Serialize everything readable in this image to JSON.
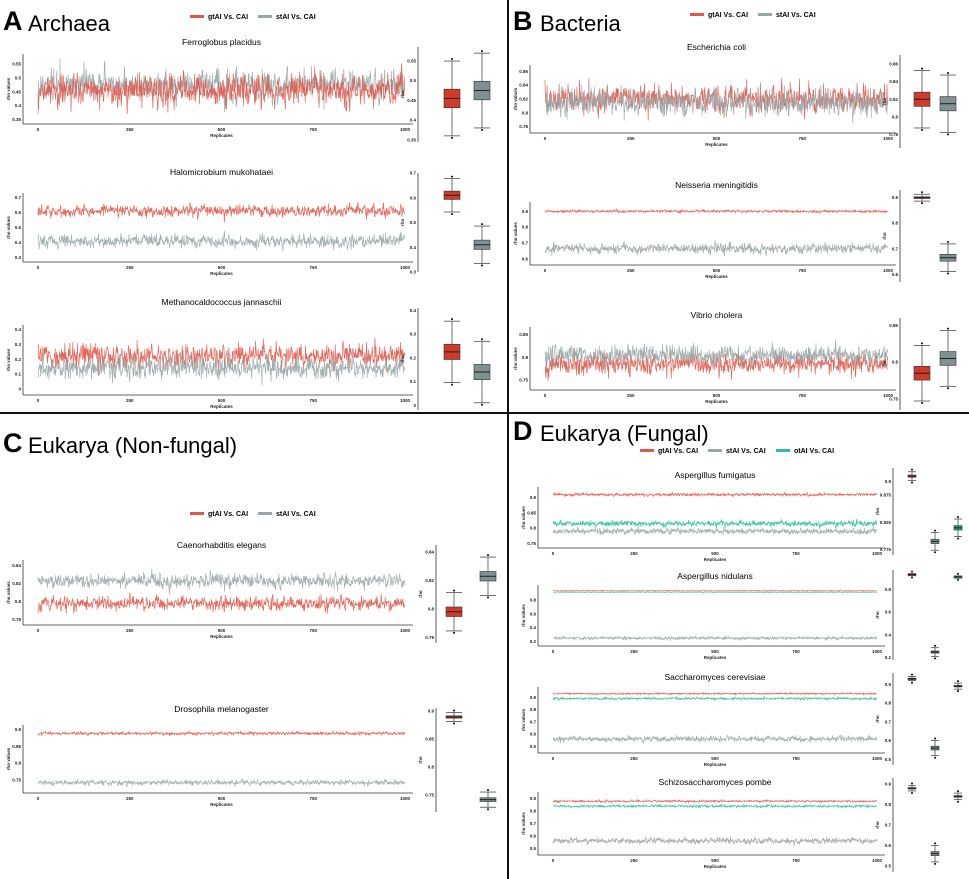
{
  "colors": {
    "gtAI": "#e0584a",
    "stAI": "#9aa6a7",
    "otAI": "#2fbf9f",
    "box_gtAI": "#cf3a2a",
    "box_stAI": "#7f9192",
    "box_otAI": "#1aa586"
  },
  "chart_data": [
    {
      "panel": "A",
      "header": "Archaea",
      "legend": [
        "gtAI Vs. CAI",
        "stAI Vs. CAI"
      ],
      "plots": [
        {
          "title": "Ferroglobus placidus",
          "type": "line",
          "xlabel": "Replicates",
          "ylabel": "rho values",
          "xlim": [
            0,
            1000
          ],
          "xticks": [
            0,
            250,
            500,
            750,
            1000
          ],
          "ylim": [
            0.345,
            0.575
          ],
          "yticks": [
            0.35,
            0.4,
            0.45,
            0.5,
            0.55
          ],
          "box_ylabel": "rho",
          "box_ylim": [
            0.345,
            0.585
          ],
          "box_yticks": [
            0.35,
            0.4,
            0.45,
            0.5,
            0.55
          ],
          "series": [
            {
              "name": "gtAI Vs. CAI",
              "key": "gtAI",
              "mean": 0.455,
              "sd": 0.035
            },
            {
              "name": "stAI Vs. CAI",
              "key": "stAI",
              "mean": 0.475,
              "sd": 0.035
            }
          ]
        },
        {
          "title": "Halomicrobium mukohataei",
          "type": "line",
          "xlabel": "Replicates",
          "ylabel": "rho values",
          "xlim": [
            0,
            1000
          ],
          "xticks": [
            0,
            250,
            500,
            750,
            1000
          ],
          "ylim": [
            0.29,
            0.71
          ],
          "yticks": [
            0.3,
            0.4,
            0.5,
            0.6,
            0.7
          ],
          "box_ylabel": "rho",
          "box_ylim": [
            0.3,
            0.7
          ],
          "box_yticks": [
            0.3,
            0.4,
            0.5,
            0.6,
            0.7
          ],
          "series": [
            {
              "name": "gtAI Vs. CAI",
              "key": "gtAI",
              "mean": 0.61,
              "sd": 0.025
            },
            {
              "name": "stAI Vs. CAI",
              "key": "stAI",
              "mean": 0.41,
              "sd": 0.028
            }
          ]
        },
        {
          "title": "Methanocaldococcus jannaschii",
          "type": "line",
          "xlabel": "Replicates",
          "ylabel": "rho values",
          "xlim": [
            0,
            1000
          ],
          "xticks": [
            0,
            250,
            500,
            750,
            1000
          ],
          "ylim": [
            -0.02,
            0.41
          ],
          "yticks": [
            0.0,
            0.1,
            0.2,
            0.3,
            0.4
          ],
          "box_ylabel": "rho",
          "box_ylim": [
            -0.02,
            0.41
          ],
          "box_yticks": [
            0.0,
            0.1,
            0.2,
            0.3,
            0.4
          ],
          "series": [
            {
              "name": "gtAI Vs. CAI",
              "key": "gtAI",
              "mean": 0.225,
              "sd": 0.048
            },
            {
              "name": "stAI Vs. CAI",
              "key": "stAI",
              "mean": 0.14,
              "sd": 0.048
            }
          ]
        }
      ]
    },
    {
      "panel": "B",
      "header": "Bacteria",
      "legend": [
        "gtAI Vs. CAI",
        "stAI Vs. CAI"
      ],
      "plots": [
        {
          "title": "Escherichia coli",
          "type": "line",
          "xlabel": "Replicates",
          "ylabel": "rho values",
          "xlim": [
            0,
            1000
          ],
          "xticks": [
            0,
            250,
            500,
            750,
            1000
          ],
          "ylim": [
            0.775,
            0.865
          ],
          "yticks": [
            0.78,
            0.8,
            0.82,
            0.84,
            0.86
          ],
          "box_ylabel": "rho",
          "box_ylim": [
            0.765,
            0.87
          ],
          "box_yticks": [
            0.78,
            0.8,
            0.82,
            0.84,
            0.86
          ],
          "series": [
            {
              "name": "gtAI Vs. CAI",
              "key": "gtAI",
              "mean": 0.82,
              "sd": 0.012
            },
            {
              "name": "stAI Vs. CAI",
              "key": "stAI",
              "mean": 0.815,
              "sd": 0.012
            }
          ]
        },
        {
          "title": "Neisseria meningitidis",
          "type": "line",
          "xlabel": "Replicates",
          "ylabel": "rho values",
          "xlim": [
            0,
            1000
          ],
          "xticks": [
            0,
            250,
            500,
            750,
            1000
          ],
          "ylim": [
            0.58,
            0.94
          ],
          "yticks": [
            0.6,
            0.7,
            0.8,
            0.9
          ],
          "box_ylabel": "rho",
          "box_ylim": [
            0.57,
            0.93
          ],
          "box_yticks": [
            0.6,
            0.7,
            0.8,
            0.9
          ],
          "series": [
            {
              "name": "gtAI Vs. CAI",
              "key": "gtAI",
              "mean": 0.9,
              "sd": 0.005
            },
            {
              "name": "stAI Vs. CAI",
              "key": "stAI",
              "mean": 0.665,
              "sd": 0.02
            }
          ]
        },
        {
          "title": "Vibrio cholera",
          "type": "line",
          "xlabel": "Replicates",
          "ylabel": "rho values",
          "xlim": [
            0,
            1000
          ],
          "xticks": [
            0,
            250,
            500,
            750,
            1000
          ],
          "ylim": [
            0.735,
            0.86
          ],
          "yticks": [
            0.75,
            0.8,
            0.85
          ],
          "box_ylabel": "rho",
          "box_ylim": [
            0.735,
            0.86
          ],
          "box_yticks": [
            0.75,
            0.8,
            0.85
          ],
          "series": [
            {
              "name": "gtAI Vs. CAI",
              "key": "gtAI",
              "mean": 0.785,
              "sd": 0.014
            },
            {
              "name": "stAI Vs. CAI",
              "key": "stAI",
              "mean": 0.805,
              "sd": 0.014
            }
          ]
        }
      ]
    },
    {
      "panel": "C",
      "header": "Eukarya (Non-fungal)",
      "legend": [
        "gtAI Vs. CAI",
        "stAI Vs. CAI"
      ],
      "plots": [
        {
          "title": "Caenorhabditis elegans",
          "type": "line",
          "xlabel": "Replicates",
          "ylabel": "rho values",
          "xlim": [
            0,
            1000
          ],
          "xticks": [
            0,
            250,
            500,
            750,
            1000
          ],
          "ylim": [
            0.777,
            0.843
          ],
          "yticks": [
            0.78,
            0.8,
            0.82,
            0.84
          ],
          "box_ylabel": "rho",
          "box_ylim": [
            0.776,
            0.845
          ],
          "box_yticks": [
            0.78,
            0.8,
            0.82,
            0.84
          ],
          "series": [
            {
              "name": "gtAI Vs. CAI",
              "key": "gtAI",
              "mean": 0.798,
              "sd": 0.005
            },
            {
              "name": "stAI Vs. CAI",
              "key": "stAI",
              "mean": 0.823,
              "sd": 0.005
            }
          ]
        },
        {
          "title": "Drosophila melanogaster",
          "type": "line",
          "xlabel": "Replicates",
          "ylabel": "rho values",
          "xlim": [
            0,
            1000
          ],
          "xticks": [
            0,
            250,
            500,
            750,
            1000
          ],
          "ylim": [
            0.72,
            0.905
          ],
          "yticks": [
            0.75,
            0.8,
            0.85,
            0.9
          ],
          "box_ylabel": "rho",
          "box_ylim": [
            0.72,
            0.905
          ],
          "box_yticks": [
            0.75,
            0.8,
            0.85,
            0.9
          ],
          "series": [
            {
              "name": "gtAI Vs. CAI",
              "key": "gtAI",
              "mean": 0.889,
              "sd": 0.003
            },
            {
              "name": "stAI Vs. CAI",
              "key": "stAI",
              "mean": 0.742,
              "sd": 0.005
            }
          ]
        }
      ]
    },
    {
      "panel": "D",
      "header": "Eukarya (Fungal)",
      "legend": [
        "gtAI Vs. CAI",
        "stAI Vs. CAI",
        "otAI Vs. CAI"
      ],
      "plots": [
        {
          "title": "Aspergillus fumigatus",
          "type": "line",
          "xlabel": "Replicates",
          "ylabel": "rho values",
          "xlim": [
            0,
            1000
          ],
          "xticks": [
            0,
            250,
            500,
            750,
            1000
          ],
          "ylim": [
            0.745,
            0.925
          ],
          "yticks": [
            0.75,
            0.8,
            0.85,
            0.9
          ],
          "box_ylabel": "rho",
          "box_ylim": [
            0.765,
            0.925
          ],
          "box_yticks": [
            0.775,
            0.825,
            0.875,
            0.9
          ],
          "series": [
            {
              "name": "gtAI Vs. CAI",
              "key": "gtAI",
              "mean": 0.91,
              "sd": 0.003
            },
            {
              "name": "stAI Vs. CAI",
              "key": "stAI",
              "mean": 0.79,
              "sd": 0.006
            },
            {
              "name": "otAI Vs. CAI",
              "key": "otAI",
              "mean": 0.815,
              "sd": 0.006
            }
          ]
        },
        {
          "title": "Aspergillus nidulans",
          "type": "line",
          "xlabel": "Replicates",
          "ylabel": "rho values",
          "xlim": [
            0,
            1000
          ],
          "xticks": [
            0,
            250,
            500,
            750,
            1000
          ],
          "ylim": [
            0.18,
            0.97
          ],
          "yticks": [
            0.2,
            0.4,
            0.6,
            0.8
          ],
          "box_ylabel": "rho",
          "box_ylim": [
            0.18,
            0.97
          ],
          "box_yticks": [
            0.2,
            0.4,
            0.6,
            0.8
          ],
          "series": [
            {
              "name": "gtAI Vs. CAI",
              "key": "gtAI",
              "mean": 0.93,
              "sd": 0.003
            },
            {
              "name": "stAI Vs. CAI",
              "key": "stAI",
              "mean": 0.25,
              "sd": 0.014
            },
            {
              "name": "otAI Vs. CAI",
              "key": "otAI",
              "mean": 0.91,
              "sd": 0.003
            }
          ]
        },
        {
          "title": "Saccharomyces cerevisiae",
          "type": "line",
          "xlabel": "Replicates",
          "ylabel": "rho values",
          "xlim": [
            0,
            1000
          ],
          "xticks": [
            0,
            250,
            500,
            750,
            1000
          ],
          "ylim": [
            0.47,
            0.96
          ],
          "yticks": [
            0.5,
            0.6,
            0.7,
            0.8,
            0.9
          ],
          "box_ylabel": "rho",
          "box_ylim": [
            0.47,
            0.96
          ],
          "box_yticks": [
            0.5,
            0.6,
            0.7,
            0.8,
            0.9
          ],
          "series": [
            {
              "name": "gtAI Vs. CAI",
              "key": "gtAI",
              "mean": 0.93,
              "sd": 0.004
            },
            {
              "name": "stAI Vs. CAI",
              "key": "stAI",
              "mean": 0.56,
              "sd": 0.015
            },
            {
              "name": "otAI Vs. CAI",
              "key": "otAI",
              "mean": 0.89,
              "sd": 0.006
            }
          ]
        },
        {
          "title": "Schizosaccharomyces pombe",
          "type": "line",
          "xlabel": "Replicates",
          "ylabel": "rho values",
          "xlim": [
            0,
            1000
          ],
          "xticks": [
            0,
            250,
            500,
            750,
            1000
          ],
          "ylim": [
            0.47,
            0.93
          ],
          "yticks": [
            0.5,
            0.6,
            0.7,
            0.8,
            0.9
          ],
          "box_ylabel": "rho",
          "box_ylim": [
            0.47,
            0.93
          ],
          "box_yticks": [
            0.5,
            0.6,
            0.7,
            0.8,
            0.9
          ],
          "series": [
            {
              "name": "gtAI Vs. CAI",
              "key": "gtAI",
              "mean": 0.88,
              "sd": 0.005
            },
            {
              "name": "stAI Vs. CAI",
              "key": "stAI",
              "mean": 0.56,
              "sd": 0.015
            },
            {
              "name": "otAI Vs. CAI",
              "key": "otAI",
              "mean": 0.84,
              "sd": 0.006
            }
          ]
        }
      ]
    }
  ]
}
